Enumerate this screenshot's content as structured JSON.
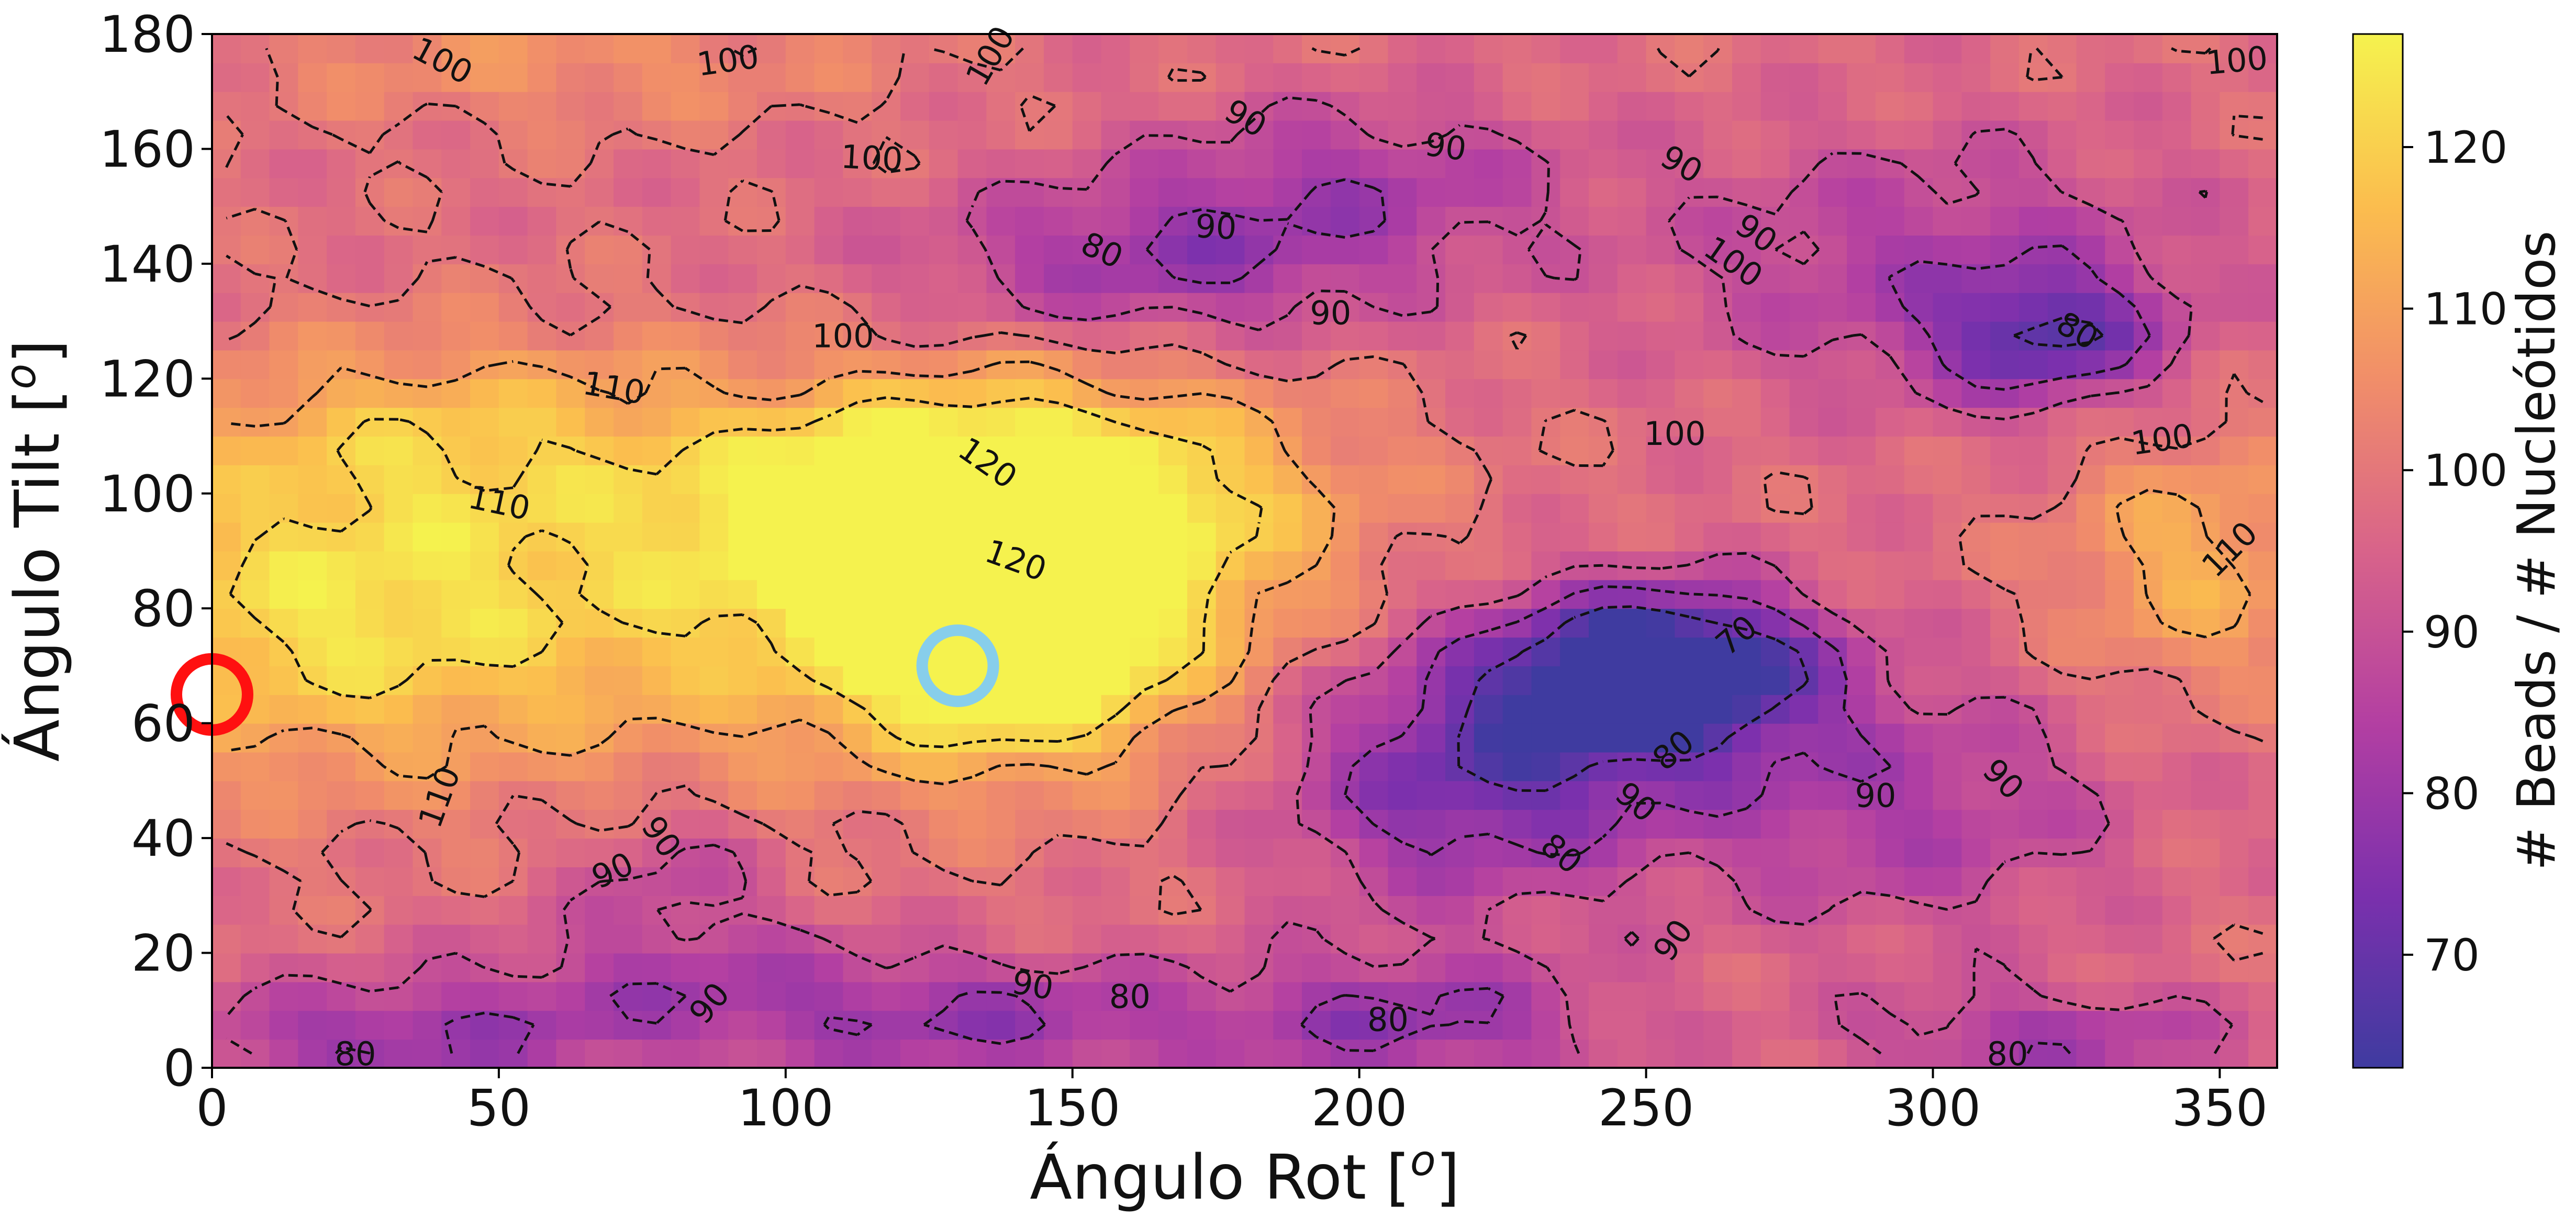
{
  "chart_data": {
    "type": "heatmap",
    "title": "",
    "xlabel": "Ángulo Rot [",
    "xlabel_sup": "o",
    "xlabel_end": "]",
    "ylabel": "Ángulo Tilt [",
    "ylabel_sup": "o",
    "ylabel_end": "]",
    "colorbar_label": "# Beads / # Nucleótidos",
    "xlim": [
      0,
      360
    ],
    "ylim": [
      0,
      180
    ],
    "x_ticks": [
      0,
      50,
      100,
      150,
      200,
      250,
      300,
      350
    ],
    "y_ticks": [
      0,
      20,
      40,
      60,
      80,
      100,
      120,
      140,
      160,
      180
    ],
    "colorbar_range": [
      63,
      127
    ],
    "colorbar_ticks": [
      70,
      80,
      90,
      100,
      110,
      120
    ],
    "colormap": "plasma",
    "colormap_stops": [
      "#3f3ba0",
      "#7b30ad",
      "#b33fa2",
      "#d8638a",
      "#f18e69",
      "#fbbd4e",
      "#f5f24e"
    ],
    "grid": false,
    "contour_levels": [
      70,
      80,
      90,
      100,
      110,
      120
    ],
    "contour_style": "dashed-black",
    "field_features": [
      {
        "x": 125,
        "y": 97,
        "value": 127,
        "sx": 25,
        "sy": 13
      },
      {
        "x": 140,
        "y": 70,
        "value": 125,
        "sx": 20,
        "sy": 12
      },
      {
        "x": 155,
        "y": 98,
        "value": 119,
        "sx": 28,
        "sy": 16
      },
      {
        "x": 95,
        "y": 82,
        "value": 116,
        "sx": 60,
        "sy": 22
      },
      {
        "x": 15,
        "y": 78,
        "value": 116,
        "sx": 32,
        "sy": 18
      },
      {
        "x": 40,
        "y": 110,
        "value": 112,
        "sx": 34,
        "sy": 12
      },
      {
        "x": 345,
        "y": 88,
        "value": 113,
        "sx": 16,
        "sy": 16
      },
      {
        "x": 60,
        "y": 175,
        "value": 106,
        "sx": 40,
        "sy": 8
      },
      {
        "x": 255,
        "y": 70,
        "value": 62,
        "sx": 18,
        "sy": 9
      },
      {
        "x": 235,
        "y": 62,
        "value": 75,
        "sx": 26,
        "sy": 14
      },
      {
        "x": 215,
        "y": 45,
        "value": 82,
        "sx": 22,
        "sy": 14
      },
      {
        "x": 320,
        "y": 127,
        "value": 75,
        "sx": 14,
        "sy": 8
      },
      {
        "x": 300,
        "y": 140,
        "value": 84,
        "sx": 34,
        "sy": 16
      },
      {
        "x": 165,
        "y": 140,
        "value": 80,
        "sx": 30,
        "sy": 10
      },
      {
        "x": 200,
        "y": 155,
        "value": 85,
        "sx": 26,
        "sy": 10
      },
      {
        "x": 135,
        "y": 8,
        "value": 80,
        "sx": 30,
        "sy": 8
      },
      {
        "x": 210,
        "y": 8,
        "value": 79,
        "sx": 24,
        "sy": 8
      },
      {
        "x": 30,
        "y": 5,
        "value": 80,
        "sx": 28,
        "sy": 7
      },
      {
        "x": 80,
        "y": 15,
        "value": 86,
        "sx": 25,
        "sy": 9
      },
      {
        "x": 295,
        "y": 45,
        "value": 84,
        "sx": 28,
        "sy": 16
      },
      {
        "x": 80,
        "y": 35,
        "value": 88,
        "sx": 12,
        "sy": 8
      },
      {
        "x": 320,
        "y": 5,
        "value": 82,
        "sx": 24,
        "sy": 6
      }
    ],
    "field_base": 98,
    "contour_labels": [
      {
        "text": "100",
        "x": 40,
        "y": 175,
        "angle": 28
      },
      {
        "text": "100",
        "x": 90,
        "y": 175,
        "angle": -8
      },
      {
        "text": "100",
        "x": 136,
        "y": 176,
        "angle": -60
      },
      {
        "text": "100",
        "x": 353,
        "y": 175,
        "angle": -5
      },
      {
        "text": "100",
        "x": 115,
        "y": 158,
        "angle": 3
      },
      {
        "text": "90",
        "x": 180,
        "y": 165,
        "angle": 30
      },
      {
        "text": "90",
        "x": 215,
        "y": 160,
        "angle": 8
      },
      {
        "text": "90",
        "x": 256,
        "y": 157,
        "angle": 30
      },
      {
        "text": "90",
        "x": 269,
        "y": 145,
        "angle": 35
      },
      {
        "text": "100",
        "x": 265,
        "y": 140,
        "angle": 35
      },
      {
        "text": "80",
        "x": 155,
        "y": 142,
        "angle": 25
      },
      {
        "text": "90",
        "x": 175,
        "y": 146,
        "angle": 3
      },
      {
        "text": "90",
        "x": 195,
        "y": 131,
        "angle": 0
      },
      {
        "text": "100",
        "x": 110,
        "y": 127,
        "angle": 0
      },
      {
        "text": "80",
        "x": 325,
        "y": 128,
        "angle": 30
      },
      {
        "text": "110",
        "x": 70,
        "y": 118,
        "angle": 10
      },
      {
        "text": "120",
        "x": 135,
        "y": 105,
        "angle": 35
      },
      {
        "text": "110",
        "x": 50,
        "y": 98,
        "angle": 12
      },
      {
        "text": "120",
        "x": 140,
        "y": 88,
        "angle": 20
      },
      {
        "text": "100",
        "x": 255,
        "y": 110,
        "angle": 0
      },
      {
        "text": "100",
        "x": 340,
        "y": 109,
        "angle": -8
      },
      {
        "text": "110",
        "x": 352,
        "y": 90,
        "angle": -45
      },
      {
        "text": "70",
        "x": 266,
        "y": 75,
        "angle": -40
      },
      {
        "text": "80",
        "x": 255,
        "y": 55,
        "angle": -40
      },
      {
        "text": "90",
        "x": 248,
        "y": 46,
        "angle": 40
      },
      {
        "text": "110",
        "x": 40,
        "y": 47,
        "angle": -70
      },
      {
        "text": "90",
        "x": 78,
        "y": 40,
        "angle": 55
      },
      {
        "text": "90",
        "x": 70,
        "y": 34,
        "angle": -25
      },
      {
        "text": "80",
        "x": 235,
        "y": 37,
        "angle": 40
      },
      {
        "text": "90",
        "x": 290,
        "y": 47,
        "angle": 0
      },
      {
        "text": "90",
        "x": 312,
        "y": 50,
        "angle": 45
      },
      {
        "text": "90",
        "x": 255,
        "y": 22,
        "angle": -55
      },
      {
        "text": "90",
        "x": 87,
        "y": 11,
        "angle": -50
      },
      {
        "text": "90",
        "x": 143,
        "y": 14,
        "angle": 10
      },
      {
        "text": "80",
        "x": 160,
        "y": 12,
        "angle": 0
      },
      {
        "text": "80",
        "x": 205,
        "y": 8,
        "angle": 0
      },
      {
        "text": "80",
        "x": 25,
        "y": 2,
        "angle": 0
      },
      {
        "text": "80",
        "x": 313,
        "y": 2,
        "angle": 0
      }
    ],
    "markers": [
      {
        "name": "red-circle",
        "x": 0,
        "y": 65,
        "color": "#ff1010"
      },
      {
        "name": "lightblue-circle",
        "x": 130,
        "y": 70,
        "color": "#87ceeb"
      }
    ]
  }
}
